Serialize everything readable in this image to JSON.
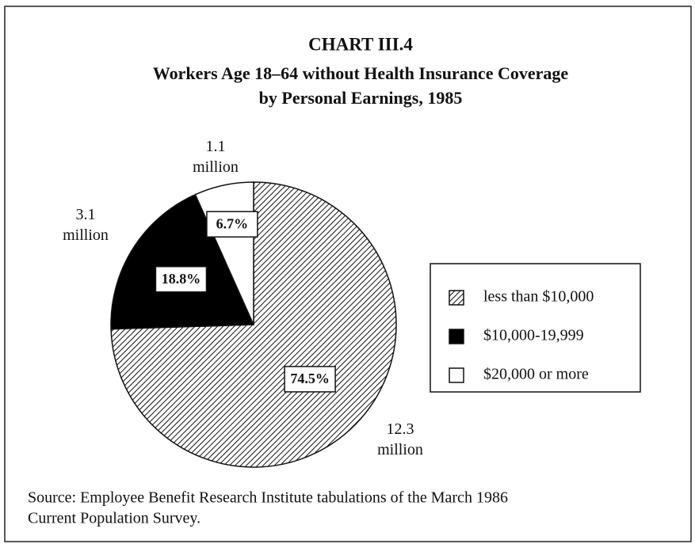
{
  "chart_data": {
    "type": "pie",
    "title": "CHART III.4",
    "subtitle": [
      "Workers Age 18–64 without Health Insurance Coverage",
      "by Personal Earnings, 1985"
    ],
    "categories": [
      "less than $10,000",
      "$10,000-19,999",
      "$20,000 or more"
    ],
    "values": [
      74.5,
      18.8,
      6.7
    ],
    "value_labels": [
      "74.5%",
      "18.8%",
      "6.7%"
    ],
    "annotations": [
      "12.3 million",
      "3.1 million",
      "1.1 million"
    ],
    "colors": [
      "#ffffff",
      "#000000",
      "#ffffff"
    ],
    "hatched": [
      true,
      false,
      false
    ],
    "legend": "right",
    "source": [
      "Source: Employee Benefit Research Institute tabulations of the March 1986",
      "Current Population Survey."
    ]
  }
}
